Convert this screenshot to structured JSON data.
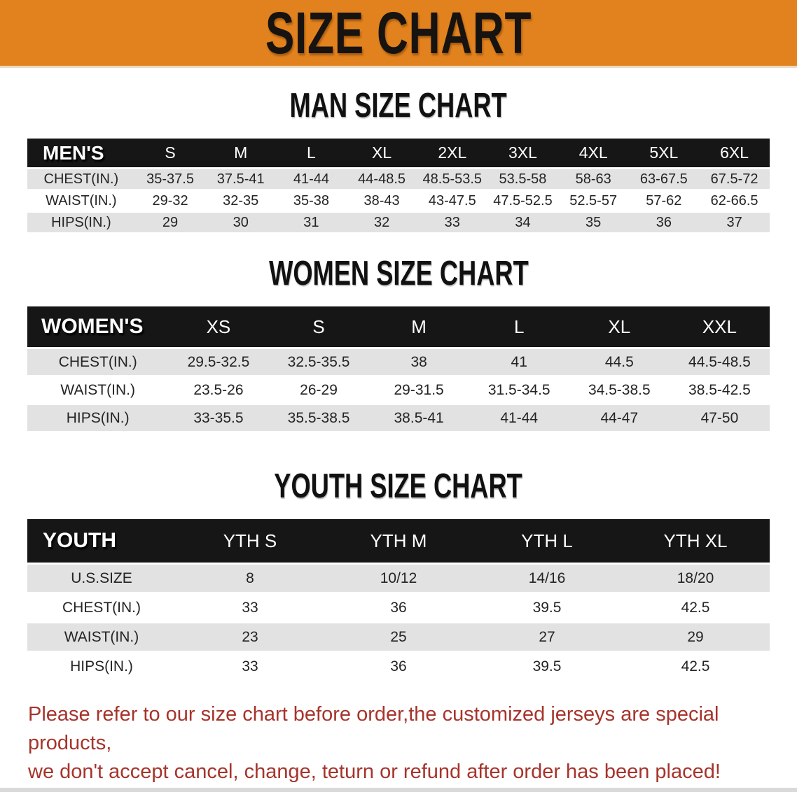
{
  "banner": {
    "title": "SIZE CHART"
  },
  "colors": {
    "banner_orange": "#e2821e",
    "header_black": "#161616",
    "row_stripe_gray": "#e2e2e2",
    "note_red": "#a6342c"
  },
  "sections": [
    {
      "title": "MAN SIZE CHART",
      "table": {
        "label": "MEN'S",
        "columns": [
          "S",
          "M",
          "L",
          "XL",
          "2XL",
          "3XL",
          "4XL",
          "5XL",
          "6XL"
        ],
        "rows": [
          {
            "label": "CHEST(IN.)",
            "values": [
              "35-37.5",
              "37.5-41",
              "41-44",
              "44-48.5",
              "48.5-53.5",
              "53.5-58",
              "58-63",
              "63-67.5",
              "67.5-72"
            ]
          },
          {
            "label": "WAIST(IN.)",
            "values": [
              "29-32",
              "32-35",
              "35-38",
              "38-43",
              "43-47.5",
              "47.5-52.5",
              "52.5-57",
              "57-62",
              "62-66.5"
            ]
          },
          {
            "label": "HIPS(IN.)",
            "values": [
              "29",
              "30",
              "31",
              "32",
              "33",
              "34",
              "35",
              "36",
              "37"
            ]
          }
        ]
      }
    },
    {
      "title": "WOMEN SIZE CHART",
      "table": {
        "label": "WOMEN'S",
        "columns": [
          "XS",
          "S",
          "M",
          "L",
          "XL",
          "XXL"
        ],
        "rows": [
          {
            "label": "CHEST(IN.)",
            "values": [
              "29.5-32.5",
              "32.5-35.5",
              "38",
              "41",
              "44.5",
              "44.5-48.5"
            ]
          },
          {
            "label": "WAIST(IN.)",
            "values": [
              "23.5-26",
              "26-29",
              "29-31.5",
              "31.5-34.5",
              "34.5-38.5",
              "38.5-42.5"
            ]
          },
          {
            "label": "HIPS(IN.)",
            "values": [
              "33-35.5",
              "35.5-38.5",
              "38.5-41",
              "41-44",
              "44-47",
              "47-50"
            ]
          }
        ]
      }
    },
    {
      "title": "YOUTH SIZE CHART",
      "table": {
        "label": "YOUTH",
        "columns": [
          "YTH S",
          "YTH M",
          "YTH L",
          "YTH XL"
        ],
        "rows": [
          {
            "label": "U.S.SIZE",
            "values": [
              "8",
              "10/12",
              "14/16",
              "18/20"
            ]
          },
          {
            "label": "CHEST(IN.)",
            "values": [
              "33",
              "36",
              "39.5",
              "42.5"
            ]
          },
          {
            "label": "WAIST(IN.)",
            "values": [
              "23",
              "25",
              "27",
              "29"
            ]
          },
          {
            "label": "HIPS(IN.)",
            "values": [
              "33",
              "36",
              "39.5",
              "42.5"
            ]
          }
        ]
      }
    }
  ],
  "footer": {
    "line1": "Please refer to our size chart before order,the customized jerseys are special products,",
    "line2": "we don't accept cancel, change, teturn or refund after order has been placed!"
  }
}
